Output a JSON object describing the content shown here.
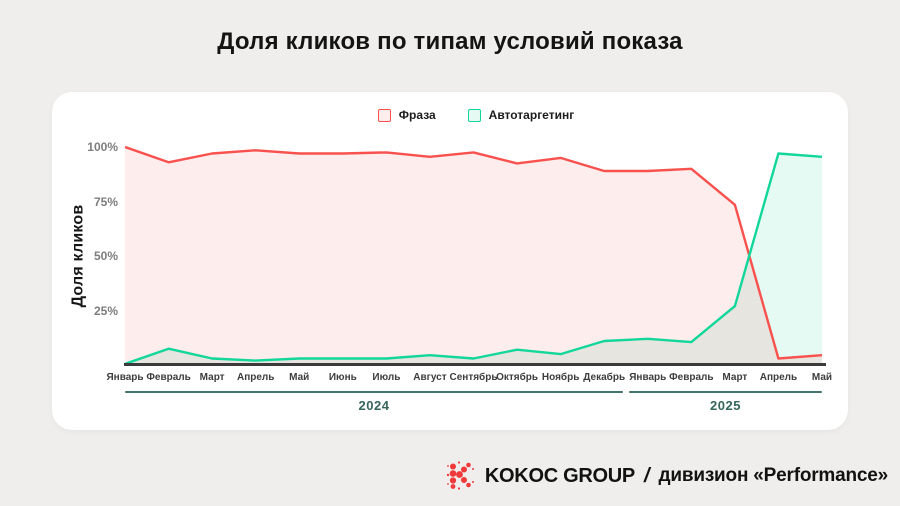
{
  "title": "Доля кликов по типам условий показа",
  "chart_data": {
    "type": "area",
    "title": "Доля кликов по типам условий показа",
    "xlabel": "",
    "ylabel": "Доля кликов",
    "ylim": [
      0,
      100
    ],
    "grid": false,
    "legend_position": "top",
    "categories": [
      "Январь",
      "Февраль",
      "Март",
      "Апрель",
      "Май",
      "Июнь",
      "Июль",
      "Август",
      "Сентябрь",
      "Октябрь",
      "Ноябрь",
      "Декабрь",
      "Январь",
      "Февраль",
      "Март",
      "Апрель",
      "Май"
    ],
    "series": [
      {
        "name": "Фраза",
        "color": "#f8514e",
        "fill": "#fdeeed",
        "values": [
          100,
          93,
          97,
          98.5,
          97,
          97,
          97.5,
          95.5,
          97.5,
          92.5,
          95,
          89,
          89,
          90,
          73.5,
          3,
          4.5
        ]
      },
      {
        "name": "Автотаргетинг",
        "color": "#12d69a",
        "fill": "#e4faf2",
        "values": [
          0.5,
          7.5,
          3,
          2,
          3,
          3,
          3,
          4.5,
          3,
          7,
          5,
          11,
          12,
          10.5,
          27,
          97,
          95.5
        ]
      }
    ],
    "overlap_fill": "#e7e5e0",
    "axis_line_color": "#3b3b3b",
    "yticks": [
      {
        "label": "100%",
        "value": 100
      },
      {
        "label": "75%",
        "value": 75
      },
      {
        "label": "50%",
        "value": 50
      },
      {
        "label": "25%",
        "value": 25
      }
    ],
    "year_groups": [
      {
        "label": "2024",
        "from": 0,
        "to": 11
      },
      {
        "label": "2025",
        "from": 12,
        "to": 16
      }
    ]
  },
  "footer": {
    "brand": "KOKOC GROUP",
    "separator": "/",
    "division": "дивизион «Performance»",
    "logo_color": "#f0393b"
  }
}
